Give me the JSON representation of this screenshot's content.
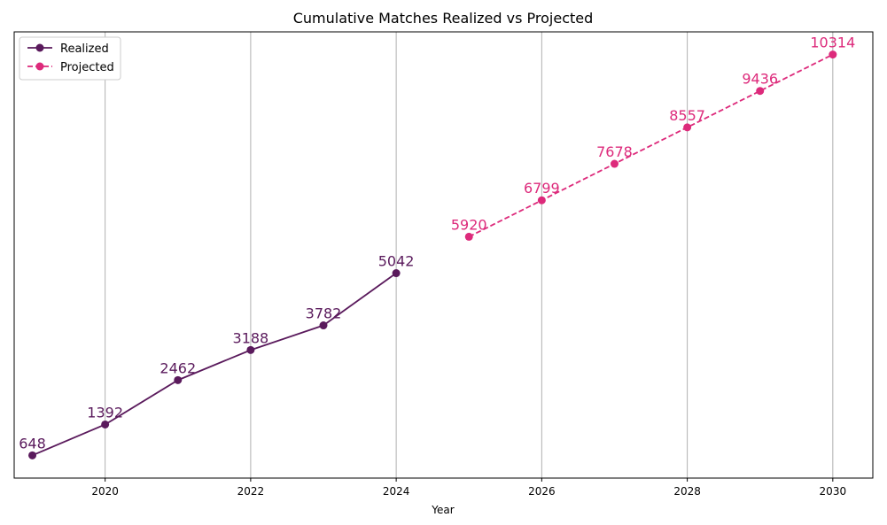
{
  "chart_data": {
    "type": "line",
    "title": "Cumulative Matches Realized vs Projected",
    "xlabel": "Year",
    "ylabel": "",
    "xlim": [
      2018.75,
      2030.55
    ],
    "ylim": [
      100,
      10860
    ],
    "x_ticks": [
      "2020",
      "2022",
      "2024",
      "2026",
      "2028",
      "2030"
    ],
    "y_ticks_visible": false,
    "grid": "vertical at x ticks",
    "legend": "top-left",
    "series": [
      {
        "name": "Realized",
        "style": "solid",
        "color": "#5a1a5c",
        "x": [
          2019,
          2020,
          2021,
          2022,
          2023,
          2024
        ],
        "values": [
          648,
          1392,
          2462,
          3188,
          3782,
          5042
        ],
        "labels": [
          "648",
          "1392",
          "2462",
          "3188",
          "3782",
          "5042"
        ]
      },
      {
        "name": "Projected",
        "style": "dashed",
        "color": "#dd2a7b",
        "x": [
          2025,
          2026,
          2027,
          2028,
          2029,
          2030
        ],
        "values": [
          5920,
          6799,
          7678,
          8557,
          9436,
          10314
        ],
        "labels": [
          "5920",
          "6799",
          "7678",
          "8557",
          "9436",
          "10314"
        ]
      }
    ]
  }
}
